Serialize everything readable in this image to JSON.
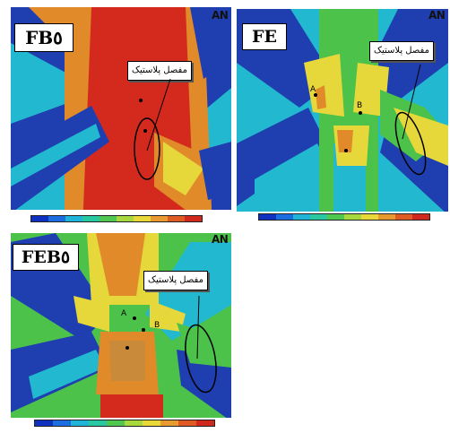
{
  "panels": [
    {
      "label": "FB٥",
      "callout": "مفصل پلاستیک",
      "logo": "AN"
    },
    {
      "label": "FE",
      "callout": "مفصل پلاستیک",
      "logo": "AN",
      "point_labels": [
        "A",
        "B"
      ]
    },
    {
      "label": "FEB٥",
      "callout": "مفصل پلاستیک",
      "logo": "AN",
      "point_labels": [
        "A",
        "B"
      ]
    }
  ],
  "colors": {
    "blue": "#1f3fb0",
    "cyan": "#22b8cf",
    "green": "#4cc24a",
    "yellow": "#e6d83a",
    "orange": "#e08a2a",
    "red": "#d42a1e"
  },
  "legend_colors": [
    "#1030c0",
    "#1c6ee0",
    "#20b4d8",
    "#28c8a0",
    "#50c850",
    "#a8d840",
    "#e8d838",
    "#e89a30",
    "#e05a24",
    "#d0281c"
  ]
}
